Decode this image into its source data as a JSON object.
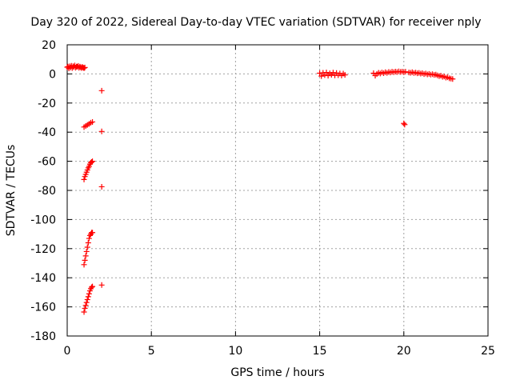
{
  "chart_data": {
    "type": "scatter",
    "title": "Day 320 of 2022, Sidereal Day-to-day VTEC variation (SDTVAR) for receiver nply",
    "xlabel": "GPS time / hours",
    "ylabel": "SDTVAR / TECUs",
    "xlim": [
      0,
      25
    ],
    "ylim": [
      -180,
      20
    ],
    "xticks": [
      0,
      5,
      10,
      15,
      20,
      25
    ],
    "yticks": [
      20,
      0,
      -20,
      -40,
      -60,
      -80,
      -100,
      -120,
      -140,
      -160,
      -180
    ],
    "grid": true,
    "marker": "plus",
    "color": "#ff0000",
    "series": [
      {
        "points": [
          [
            0.0,
            4.6
          ],
          [
            0.05,
            5.0
          ],
          [
            0.1,
            3.8
          ],
          [
            0.15,
            5.2
          ],
          [
            0.2,
            4.4
          ],
          [
            0.25,
            5.6
          ],
          [
            0.3,
            4.1
          ],
          [
            0.35,
            5.3
          ],
          [
            0.4,
            4.7
          ],
          [
            0.45,
            5.8
          ],
          [
            0.5,
            4.3
          ],
          [
            0.55,
            5.1
          ],
          [
            0.6,
            4.9
          ],
          [
            0.65,
            5.5
          ],
          [
            0.7,
            4.2
          ],
          [
            0.75,
            5.0
          ],
          [
            0.8,
            4.6
          ],
          [
            0.85,
            4.1
          ],
          [
            0.9,
            4.8
          ],
          [
            0.95,
            4.3
          ],
          [
            1.0,
            4.0
          ],
          [
            1.05,
            4.4
          ],
          [
            1.0,
            -36.5
          ],
          [
            1.1,
            -35.8
          ],
          [
            1.2,
            -35.0
          ],
          [
            1.3,
            -34.3
          ],
          [
            1.4,
            -33.5
          ],
          [
            1.5,
            -33.0
          ],
          [
            1.0,
            -72.5
          ],
          [
            1.05,
            -70.5
          ],
          [
            1.1,
            -69.0
          ],
          [
            1.15,
            -67.5
          ],
          [
            1.2,
            -66.0
          ],
          [
            1.25,
            -64.5
          ],
          [
            1.3,
            -63.5
          ],
          [
            1.35,
            -62.0
          ],
          [
            1.4,
            -61.0
          ],
          [
            1.45,
            -60.5
          ],
          [
            1.5,
            -60.0
          ],
          [
            1.0,
            -131
          ],
          [
            1.05,
            -128
          ],
          [
            1.1,
            -125
          ],
          [
            1.15,
            -122
          ],
          [
            1.2,
            -119
          ],
          [
            1.25,
            -116
          ],
          [
            1.3,
            -113
          ],
          [
            1.35,
            -111
          ],
          [
            1.4,
            -110
          ],
          [
            1.45,
            -109
          ],
          [
            1.5,
            -109
          ],
          [
            1.0,
            -163.5
          ],
          [
            1.05,
            -161
          ],
          [
            1.1,
            -159
          ],
          [
            1.15,
            -157
          ],
          [
            1.2,
            -155
          ],
          [
            1.25,
            -153
          ],
          [
            1.3,
            -151
          ],
          [
            1.35,
            -149
          ],
          [
            1.4,
            -147.5
          ],
          [
            1.45,
            -146.5
          ],
          [
            1.5,
            -146
          ],
          [
            2.05,
            -11.5
          ],
          [
            2.05,
            -39.5
          ],
          [
            2.05,
            -77.5
          ],
          [
            2.05,
            -145
          ],
          [
            15.0,
            0.5
          ],
          [
            15.1,
            -1.5
          ],
          [
            15.2,
            0.8
          ],
          [
            15.3,
            -0.8
          ],
          [
            15.4,
            1.0
          ],
          [
            15.5,
            -1.2
          ],
          [
            15.6,
            0.4
          ],
          [
            15.7,
            -0.6
          ],
          [
            15.8,
            0.9
          ],
          [
            15.9,
            -1.0
          ],
          [
            16.0,
            0.6
          ],
          [
            16.1,
            -0.9
          ],
          [
            16.2,
            0.3
          ],
          [
            16.3,
            -1.1
          ],
          [
            16.4,
            0.2
          ],
          [
            16.5,
            -0.7
          ],
          [
            18.2,
            0.5
          ],
          [
            18.3,
            -1.2
          ],
          [
            18.4,
            0.0
          ],
          [
            18.5,
            0.8
          ],
          [
            18.6,
            0.3
          ],
          [
            18.7,
            1.0
          ],
          [
            18.8,
            0.5
          ],
          [
            18.9,
            1.2
          ],
          [
            19.0,
            0.7
          ],
          [
            19.1,
            1.3
          ],
          [
            19.2,
            1.0
          ],
          [
            19.3,
            1.5
          ],
          [
            19.4,
            1.2
          ],
          [
            19.5,
            1.6
          ],
          [
            19.6,
            1.3
          ],
          [
            19.7,
            1.7
          ],
          [
            19.8,
            1.4
          ],
          [
            19.9,
            1.6
          ],
          [
            20.0,
            1.2
          ],
          [
            20.1,
            1.5
          ],
          [
            20.3,
            1.0
          ],
          [
            20.4,
            0.8
          ],
          [
            20.5,
            1.2
          ],
          [
            20.6,
            0.6
          ],
          [
            20.7,
            0.9
          ],
          [
            20.8,
            0.4
          ],
          [
            20.9,
            0.7
          ],
          [
            21.0,
            0.2
          ],
          [
            21.1,
            0.5
          ],
          [
            21.2,
            -0.1
          ],
          [
            21.3,
            0.3
          ],
          [
            21.4,
            -0.3
          ],
          [
            21.5,
            0.0
          ],
          [
            21.6,
            -0.5
          ],
          [
            21.7,
            -0.2
          ],
          [
            21.8,
            -0.7
          ],
          [
            21.9,
            -0.5
          ],
          [
            22.0,
            -1.0
          ],
          [
            22.1,
            -1.5
          ],
          [
            22.2,
            -1.2
          ],
          [
            22.3,
            -2.0
          ],
          [
            22.4,
            -1.8
          ],
          [
            22.5,
            -2.5
          ],
          [
            22.6,
            -2.3
          ],
          [
            22.7,
            -3.0
          ],
          [
            22.8,
            -3.2
          ],
          [
            22.9,
            -3.5
          ],
          [
            20.0,
            -34.0
          ],
          [
            20.05,
            -34.8
          ]
        ]
      }
    ]
  }
}
